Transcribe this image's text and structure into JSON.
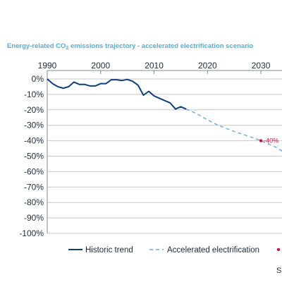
{
  "chart_data": {
    "type": "line",
    "title_main": "Energy-related CO",
    "title_sub": "2",
    "title_rest": " emissions trajectory - accelerated electrification scenario",
    "xlim": [
      1990,
      2035
    ],
    "ylim": [
      -100,
      0
    ],
    "x_ticks": [
      1990,
      2000,
      2010,
      2020,
      2030
    ],
    "y_ticks": [
      0,
      -10,
      -20,
      -30,
      -40,
      -50,
      -60,
      -70,
      -80,
      -90,
      -100
    ],
    "y_tick_labels": [
      "0%",
      "-10%",
      "-20%",
      "-30%",
      "-40%",
      "-50%",
      "-60%",
      "-70%",
      "-80%",
      "-90%",
      "-100%"
    ],
    "series": [
      {
        "name": "Historic trend",
        "color": "#0e3f7e",
        "style": "solid",
        "points": [
          [
            1990,
            0
          ],
          [
            1991,
            -3
          ],
          [
            1992,
            -5
          ],
          [
            1993,
            -6
          ],
          [
            1994,
            -5
          ],
          [
            1995,
            -2
          ],
          [
            1996,
            -3.5
          ],
          [
            1997,
            -3.5
          ],
          [
            1998,
            -4.5
          ],
          [
            1999,
            -4.5
          ],
          [
            2000,
            -3
          ],
          [
            2001,
            -3
          ],
          [
            2002,
            -0.5
          ],
          [
            2003,
            -0.5
          ],
          [
            2004,
            -1
          ],
          [
            2005,
            -0.3
          ],
          [
            2006,
            -1.5
          ],
          [
            2007,
            -4
          ],
          [
            2008,
            -10.5
          ],
          [
            2009,
            -8
          ],
          [
            2010,
            -11
          ],
          [
            2011,
            -12.5
          ],
          [
            2012,
            -14
          ],
          [
            2013,
            -15.5
          ],
          [
            2014,
            -19.5
          ],
          [
            2015,
            -18
          ],
          [
            2016,
            -19.5
          ]
        ]
      },
      {
        "name": "Accelerated electrification",
        "color": "#6aa9d9",
        "style": "dashed",
        "points": [
          [
            2016,
            -19.5
          ],
          [
            2018,
            -22.5
          ],
          [
            2020,
            -26.5
          ],
          [
            2022,
            -30
          ],
          [
            2025,
            -34
          ],
          [
            2028,
            -37.5
          ],
          [
            2030,
            -40
          ],
          [
            2033,
            -44.5
          ],
          [
            2035,
            -49
          ]
        ]
      }
    ],
    "annotations": [
      {
        "x": 2030,
        "y": -40,
        "label": "-40%",
        "color": "#d0103a"
      }
    ],
    "legend_position": "bottom",
    "grid": "horizontal"
  },
  "source_fragment": "S"
}
